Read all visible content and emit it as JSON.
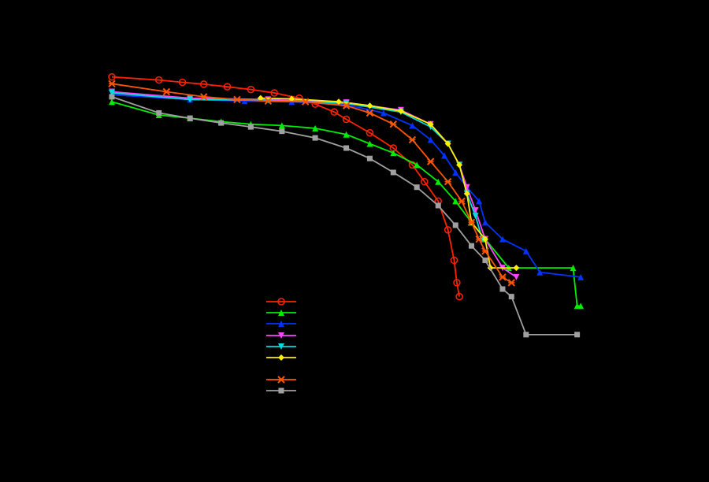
{
  "chart_data": {
    "type": "line",
    "title": "",
    "xlabel": "",
    "ylabel": "",
    "xscale": "log",
    "yscale": "log",
    "grid": false,
    "legend_position": "lower-center",
    "background": "#000000",
    "series": [
      {
        "color": "#ff2200",
        "marker": "circle",
        "points": [
          [
            1,
            1.0
          ],
          [
            4,
            0.93
          ],
          [
            8,
            0.88
          ],
          [
            15,
            0.84
          ],
          [
            30,
            0.79
          ],
          [
            60,
            0.74
          ],
          [
            120,
            0.68
          ],
          [
            250,
            0.6
          ],
          [
            400,
            0.52
          ],
          [
            700,
            0.43
          ],
          [
            1000,
            0.36
          ],
          [
            2000,
            0.26
          ],
          [
            4000,
            0.18
          ],
          [
            7000,
            0.12
          ],
          [
            10000,
            0.08
          ],
          [
            15000,
            0.05
          ],
          [
            20000,
            0.025
          ],
          [
            24000,
            0.012
          ],
          [
            26000,
            0.007
          ],
          [
            28000,
            0.005
          ]
        ]
      },
      {
        "color": "#00ee00",
        "marker": "triangle-up",
        "points": [
          [
            1,
            0.55
          ],
          [
            4,
            0.4
          ],
          [
            10,
            0.37
          ],
          [
            25,
            0.34
          ],
          [
            60,
            0.32
          ],
          [
            150,
            0.31
          ],
          [
            400,
            0.29
          ],
          [
            1000,
            0.25
          ],
          [
            2000,
            0.2
          ],
          [
            4000,
            0.16
          ],
          [
            8000,
            0.12
          ],
          [
            15000,
            0.08
          ],
          [
            25000,
            0.05
          ],
          [
            40000,
            0.03
          ],
          [
            60000,
            0.02
          ],
          [
            120000,
            0.01
          ],
          [
            800000,
            0.01
          ],
          [
            900000,
            0.004
          ],
          [
            1000000,
            0.004
          ]
        ]
      },
      {
        "color": "#0033ff",
        "marker": "triangle-up",
        "points": [
          [
            1,
            0.65
          ],
          [
            10,
            0.58
          ],
          [
            50,
            0.56
          ],
          [
            200,
            0.55
          ],
          [
            1000,
            0.51
          ],
          [
            3000,
            0.42
          ],
          [
            7000,
            0.31
          ],
          [
            12000,
            0.22
          ],
          [
            18000,
            0.15
          ],
          [
            25000,
            0.1
          ],
          [
            35000,
            0.07
          ],
          [
            50000,
            0.05
          ],
          [
            60000,
            0.03
          ],
          [
            100000,
            0.02
          ],
          [
            200000,
            0.015
          ],
          [
            300000,
            0.009
          ],
          [
            1000000,
            0.008
          ]
        ]
      },
      {
        "color": "#ff44ff",
        "marker": "triangle-down",
        "points": [
          [
            1,
            0.7
          ],
          [
            10,
            0.6
          ],
          [
            100,
            0.58
          ],
          [
            1000,
            0.54
          ],
          [
            5000,
            0.45
          ],
          [
            12000,
            0.32
          ],
          [
            20000,
            0.2
          ],
          [
            28000,
            0.12
          ],
          [
            35000,
            0.07
          ],
          [
            45000,
            0.04
          ],
          [
            60000,
            0.02
          ],
          [
            100000,
            0.01
          ],
          [
            150000,
            0.008
          ]
        ]
      },
      {
        "color": "#00dddd",
        "marker": "triangle-down",
        "points": [
          [
            1,
            0.68
          ],
          [
            10,
            0.58
          ],
          [
            100,
            0.57
          ],
          [
            1000,
            0.53
          ],
          [
            5000,
            0.43
          ],
          [
            12000,
            0.3
          ],
          [
            20000,
            0.2
          ],
          [
            28000,
            0.12
          ],
          [
            35000,
            0.06
          ],
          [
            45000,
            0.035
          ],
          [
            55000,
            0.02
          ]
        ]
      },
      {
        "color": "#ffee00",
        "marker": "diamond",
        "points": [
          [
            80,
            0.6
          ],
          [
            200,
            0.59
          ],
          [
            800,
            0.55
          ],
          [
            2000,
            0.5
          ],
          [
            5000,
            0.44
          ],
          [
            12000,
            0.32
          ],
          [
            20000,
            0.2
          ],
          [
            28000,
            0.12
          ],
          [
            35000,
            0.06
          ],
          [
            40000,
            0.03
          ],
          [
            60000,
            0.02
          ],
          [
            70000,
            0.01
          ],
          [
            150000,
            0.01
          ]
        ]
      },
      {
        "color": "#ff5500",
        "marker": "x",
        "points": [
          [
            1,
            0.85
          ],
          [
            5,
            0.7
          ],
          [
            15,
            0.62
          ],
          [
            40,
            0.58
          ],
          [
            100,
            0.56
          ],
          [
            300,
            0.55
          ],
          [
            1000,
            0.5
          ],
          [
            2000,
            0.42
          ],
          [
            4000,
            0.32
          ],
          [
            7000,
            0.22
          ],
          [
            12000,
            0.13
          ],
          [
            20000,
            0.08
          ],
          [
            30000,
            0.05
          ],
          [
            40000,
            0.03
          ],
          [
            50000,
            0.02
          ],
          [
            60000,
            0.015
          ],
          [
            100000,
            0.008
          ],
          [
            130000,
            0.007
          ]
        ]
      },
      {
        "color": "#a0a0a0",
        "marker": "square",
        "points": [
          [
            1,
            0.62
          ],
          [
            4,
            0.42
          ],
          [
            10,
            0.37
          ],
          [
            25,
            0.33
          ],
          [
            60,
            0.3
          ],
          [
            150,
            0.27
          ],
          [
            400,
            0.23
          ],
          [
            1000,
            0.18
          ],
          [
            2000,
            0.14
          ],
          [
            4000,
            0.1
          ],
          [
            8000,
            0.07
          ],
          [
            15000,
            0.045
          ],
          [
            25000,
            0.028
          ],
          [
            40000,
            0.017
          ],
          [
            60000,
            0.012
          ],
          [
            100000,
            0.006
          ],
          [
            130000,
            0.005
          ],
          [
            200000,
            0.002
          ],
          [
            900000,
            0.002
          ]
        ]
      }
    ]
  }
}
